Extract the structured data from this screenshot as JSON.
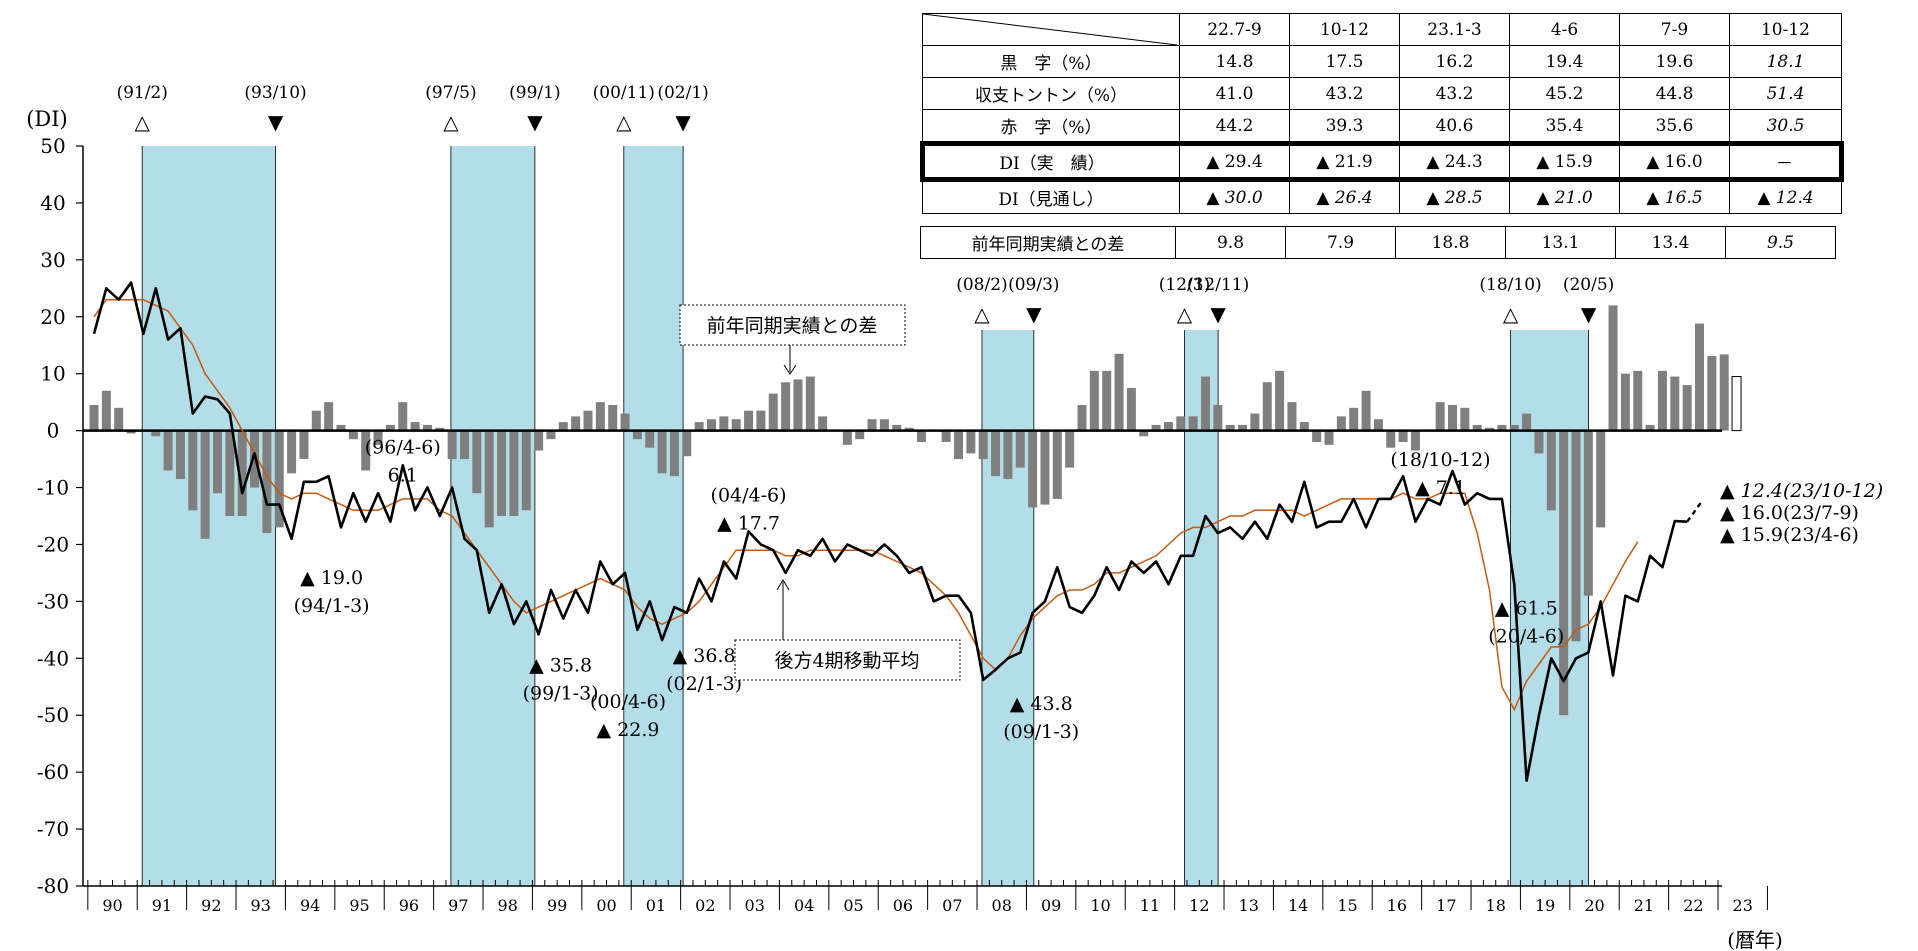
{
  "chart_data": {
    "type": "bar+line",
    "ylabel": "(DI)",
    "xlabel": "(暦年)",
    "ylim": [
      -80,
      50
    ],
    "yticks": [
      50,
      40,
      30,
      20,
      10,
      0,
      -10,
      -20,
      -30,
      -40,
      -50,
      -60,
      -70,
      -80
    ],
    "x_tick_labels": [
      "90",
      "91",
      "92",
      "93",
      "94",
      "95",
      "96",
      "97",
      "98",
      "99",
      "00",
      "01",
      "02",
      "03",
      "04",
      "05",
      "06",
      "07",
      "08",
      "09",
      "10",
      "11",
      "12",
      "13",
      "14",
      "15",
      "16",
      "17",
      "18",
      "19",
      "20",
      "21",
      "22",
      "23"
    ],
    "x_start_year": 1990,
    "colors": {
      "band": "#b3dde8",
      "bar": "#7f7f7f",
      "di_line": "#000000",
      "ma_line": "#c55a11"
    },
    "series": [
      {
        "name": "DI(実績)",
        "values": [
          17,
          25,
          23,
          26,
          17,
          25,
          16,
          18,
          3,
          6,
          5.5,
          3,
          -11,
          -4,
          -13,
          -13,
          -19,
          -9,
          -9,
          -8,
          -17,
          -11,
          -16,
          -11,
          -16,
          -6.1,
          -14,
          -10,
          -15,
          -10,
          -19,
          -21,
          -32,
          -27,
          -34,
          -30,
          -35.8,
          -28,
          -33,
          -28,
          -32,
          -23,
          -27,
          -25,
          -35,
          -30,
          -36.8,
          -31,
          -32,
          -26,
          -30,
          -23,
          -26,
          -17.7,
          -20,
          -21,
          -25,
          -21,
          -22,
          -19,
          -23,
          -20,
          -21,
          -22,
          -20,
          -22,
          -25,
          -24,
          -30,
          -29,
          -29,
          -32,
          -43.8,
          -42,
          -40,
          -39,
          -32,
          -30,
          -24,
          -31,
          -32,
          -29,
          -24,
          -28,
          -23,
          -25,
          -23,
          -27,
          -22,
          -22,
          -15,
          -18,
          -17,
          -19,
          -16,
          -19,
          -13,
          -16,
          -9,
          -17,
          -16,
          -16,
          -12,
          -17,
          -12,
          -12,
          -8,
          -16,
          -12,
          -13,
          -7.1,
          -13,
          -11,
          -12,
          -12,
          -27,
          -61.5,
          -50,
          -40,
          -44,
          -40,
          -39,
          -30,
          -43,
          -29,
          -30,
          -22,
          -24,
          -15.9,
          -16,
          null
        ]
      },
      {
        "name": "DI(見通し)",
        "values": [
          -16,
          -12.4
        ]
      },
      {
        "name": "後方4期移動平均",
        "values": [
          20,
          23,
          23,
          23,
          23,
          22,
          21,
          18,
          15,
          10,
          7,
          4,
          0,
          -4,
          -8,
          -11,
          -12,
          -11,
          -11,
          -12,
          -13,
          -14,
          -14,
          -14,
          -13,
          -12,
          -12,
          -12,
          -14,
          -15,
          -18,
          -21,
          -24,
          -27,
          -30,
          -32,
          -31,
          -30,
          -29,
          -28,
          -27,
          -26,
          -27,
          -28,
          -31,
          -33,
          -34,
          -33,
          -32,
          -30,
          -27,
          -24,
          -21,
          -21,
          -21,
          -21,
          -22,
          -22,
          -21,
          -21,
          -21,
          -21,
          -21,
          -21,
          -22,
          -23,
          -24,
          -25,
          -27,
          -29,
          -32,
          -36,
          -40,
          -42,
          -40,
          -36,
          -33,
          -31,
          -29,
          -28,
          -28,
          -27,
          -25,
          -25,
          -24,
          -23,
          -22,
          -20,
          -18,
          -17,
          -17,
          -16,
          -15,
          -15,
          -14,
          -14,
          -14,
          -14,
          -15,
          -14,
          -13,
          -12,
          -12,
          -12,
          -12,
          -12,
          -11,
          -12,
          -12,
          -11,
          -11,
          -11,
          -18,
          -28,
          -45,
          -49,
          -44,
          -41,
          -38,
          -38,
          -35,
          -34,
          -31,
          -27,
          -23,
          -19.5
        ]
      },
      {
        "name": "前年同期実績との差",
        "values": [
          4.5,
          7,
          4,
          -0.5,
          0,
          -1,
          -7,
          -8.5,
          -14,
          -19,
          -11,
          -15,
          -15,
          -10,
          -18,
          -17,
          -7.5,
          -5,
          3.5,
          5,
          1,
          -1.5,
          -7,
          -2.5,
          1,
          5,
          1.5,
          1,
          0.5,
          -5,
          -5,
          -11,
          -17,
          -15,
          -15,
          -14,
          -3.5,
          -1.5,
          1.5,
          2.5,
          3.5,
          5,
          4.5,
          3,
          -1.5,
          -3,
          -7.5,
          -8,
          -4.5,
          1.5,
          2,
          2.5,
          2,
          3.5,
          3.5,
          6.5,
          8.5,
          9,
          9.5,
          2.5,
          0,
          -2.5,
          -1.5,
          2,
          2,
          1,
          0.5,
          -2,
          0,
          -2,
          -5,
          -4,
          -5,
          -8,
          -8.5,
          -6.5,
          -13.5,
          -13,
          -12,
          -6.5,
          4.5,
          10.5,
          10.5,
          13.5,
          7.5,
          -1,
          1,
          1.5,
          2.5,
          2.5,
          9.5,
          4.5,
          1,
          1,
          3,
          8.5,
          10.5,
          5,
          1.5,
          -2,
          -2.5,
          2.5,
          4,
          7,
          2,
          -3,
          -2,
          -3.5,
          0,
          5,
          4.5,
          4,
          1,
          0.5,
          1,
          1,
          3,
          -4,
          -14,
          -50,
          -37,
          -29,
          -17,
          22,
          10,
          10.5,
          1,
          10.5,
          9.5,
          8,
          18.8,
          13.1,
          13.4,
          9.5
        ]
      }
    ],
    "bands": [
      {
        "peak": "(91/2)",
        "trough": "(93/10)",
        "start": 1991.1,
        "end": 1993.8
      },
      {
        "peak": "(97/5)",
        "trough": "(99/1)",
        "start": 1997.35,
        "end": 1999.05
      },
      {
        "peak": "(00/11)",
        "trough": "(02/1)",
        "start": 2000.85,
        "end": 2002.05
      },
      {
        "peak": "(08/2)",
        "trough": "(09/3)",
        "start": 2008.1,
        "end": 2009.15
      },
      {
        "peak": "(12/3)",
        "trough": "(12/11)",
        "start": 2012.2,
        "end": 2012.88
      },
      {
        "peak": "(18/10)",
        "trough": "(20/5)",
        "start": 2018.8,
        "end": 2020.38
      }
    ],
    "peak_symbol": "△",
    "trough_symbol": "▼",
    "annotations": [
      {
        "text": "▲ 19.0",
        "sub": "(94/1-3)"
      },
      {
        "text": "(96/4-6)",
        "sub": "6.1"
      },
      {
        "text": "(00/4-6)",
        "sub": "▲ 22.9"
      },
      {
        "text": "▲ 35.8",
        "sub": "(99/1-3)"
      },
      {
        "text": "▲ 36.8",
        "sub": "(02/1-3)"
      },
      {
        "text": "(04/4-6)",
        "sub": "▲ 17.7"
      },
      {
        "text": "▲ 43.8",
        "sub": "(09/1-3)"
      },
      {
        "text": "(18/10-12)",
        "sub": "▲ 7.1"
      },
      {
        "text": "▲ 61.5",
        "sub": "(20/4-6)"
      }
    ],
    "right_labels": [
      "▲ 12.4(23/10-12)",
      "▲ 16.0(23/7-9)",
      "▲ 15.9(23/4-6)"
    ],
    "callouts": {
      "diff": "前年同期実績との差",
      "ma": "後方4期移動平均"
    }
  },
  "table": {
    "headers": [
      "22.7-9",
      "10-12",
      "23.1-3",
      "4-6",
      "7-9",
      "10-12"
    ],
    "rows": [
      {
        "label": "黒　字（%）",
        "values": [
          "14.8",
          "17.5",
          "16.2",
          "19.4",
          "19.6",
          "18.1"
        ]
      },
      {
        "label": "収支トントン（%）",
        "values": [
          "41.0",
          "43.2",
          "43.2",
          "45.2",
          "44.8",
          "51.4"
        ]
      },
      {
        "label": "赤　字（%）",
        "values": [
          "44.2",
          "39.3",
          "40.6",
          "35.4",
          "35.6",
          "30.5"
        ]
      },
      {
        "label": "DI（実　績）",
        "values": [
          "▲ 29.4",
          "▲ 21.9",
          "▲ 24.3",
          "▲ 15.9",
          "▲ 16.0",
          "－"
        ]
      },
      {
        "label": "DI（見通し）",
        "values": [
          "▲ 30.0",
          "▲ 26.4",
          "▲ 28.5",
          "▲ 21.0",
          "▲ 16.5",
          "▲ 12.4"
        ]
      }
    ],
    "diff_row": {
      "label": "前年同期実績との差",
      "values": [
        "9.8",
        "7.9",
        "18.8",
        "13.1",
        "13.4",
        "9.5"
      ]
    }
  }
}
